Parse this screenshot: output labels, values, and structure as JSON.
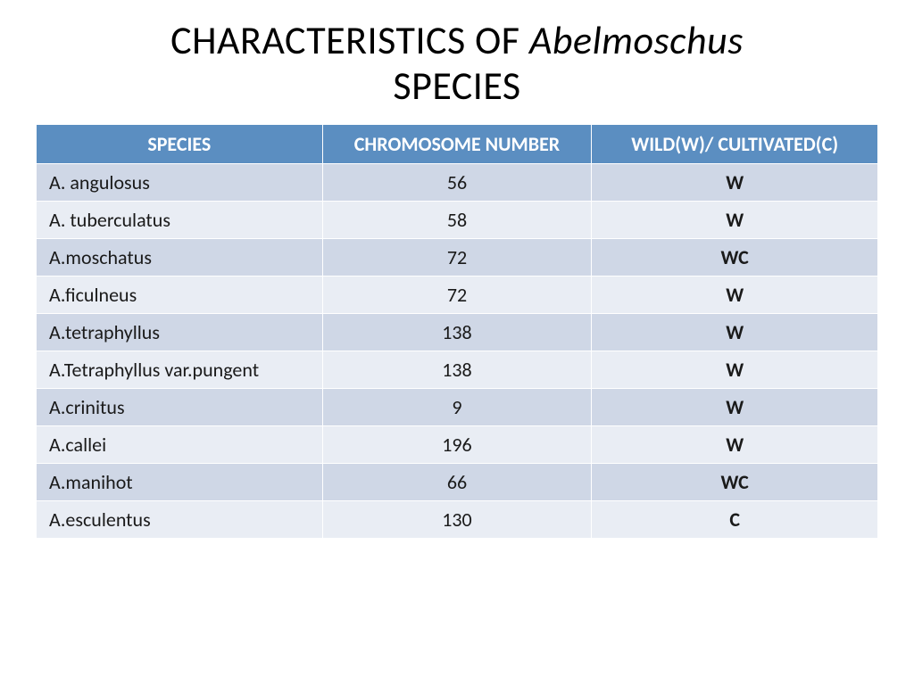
{
  "title": {
    "pre": "CHARACTERISTICS OF ",
    "italic": "Abelmoschus",
    "post": " SPECIES"
  },
  "table": {
    "type": "table",
    "header_bg": "#5b8ec1",
    "header_fg": "#ffffff",
    "row_odd_bg": "#cfd7e6",
    "row_even_bg": "#e9edf4",
    "border_color": "#ffffff",
    "font_size": 22,
    "columns": [
      "SPECIES",
      "CHROMOSOME NUMBER",
      "WILD(W)/ CULTIVATED(C)"
    ],
    "rows": [
      {
        "species": "A. angulosus",
        "chrom": "56",
        "status": "W"
      },
      {
        "species": "A. tuberculatus",
        "chrom": "58",
        "status": "W"
      },
      {
        "species": "A.moschatus",
        "chrom": "72",
        "status": "WC"
      },
      {
        "species": "A.ficulneus",
        "chrom": "72",
        "status": "W"
      },
      {
        "species": "A.tetraphyllus",
        "chrom": "138",
        "status": "W"
      },
      {
        "species": "A.Tetraphyllus var.pungent",
        "chrom": "138",
        "status": "W"
      },
      {
        "species": "A.crinitus",
        "chrom": "9",
        "status": "W"
      },
      {
        "species": "A.callei",
        "chrom": "196",
        "status": "W"
      },
      {
        "species": "A.manihot",
        "chrom": "66",
        "status": "WC"
      },
      {
        "species": "A.esculentus",
        "chrom": "130",
        "status": "C"
      }
    ]
  }
}
